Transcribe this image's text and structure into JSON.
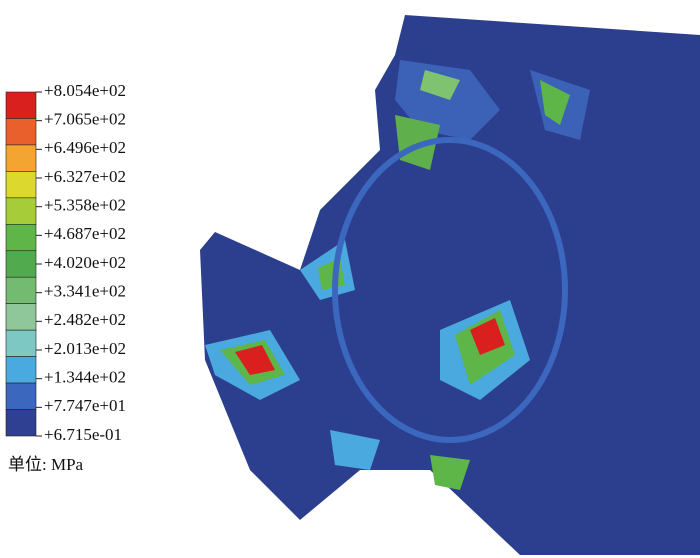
{
  "legend": {
    "labels": [
      "+8.054e+02",
      "+7.065e+02",
      "+6.496e+02",
      "+6.327e+02",
      "+5.358e+02",
      "+4.687e+02",
      "+4.020e+02",
      "+3.341e+02",
      "+2.482e+02",
      "+2.013e+02",
      "+1.344e+02",
      "+7.747e+01",
      "+6.715e-01"
    ],
    "colors": [
      "#d9201f",
      "#e9602c",
      "#f4a431",
      "#dcd82e",
      "#a6cc3a",
      "#5eb548",
      "#52aa4f",
      "#74bb72",
      "#8fc79a",
      "#7ec8c4",
      "#4aa9df",
      "#3b67bf",
      "#2f3f92"
    ],
    "unit": "单位: MPa"
  }
}
